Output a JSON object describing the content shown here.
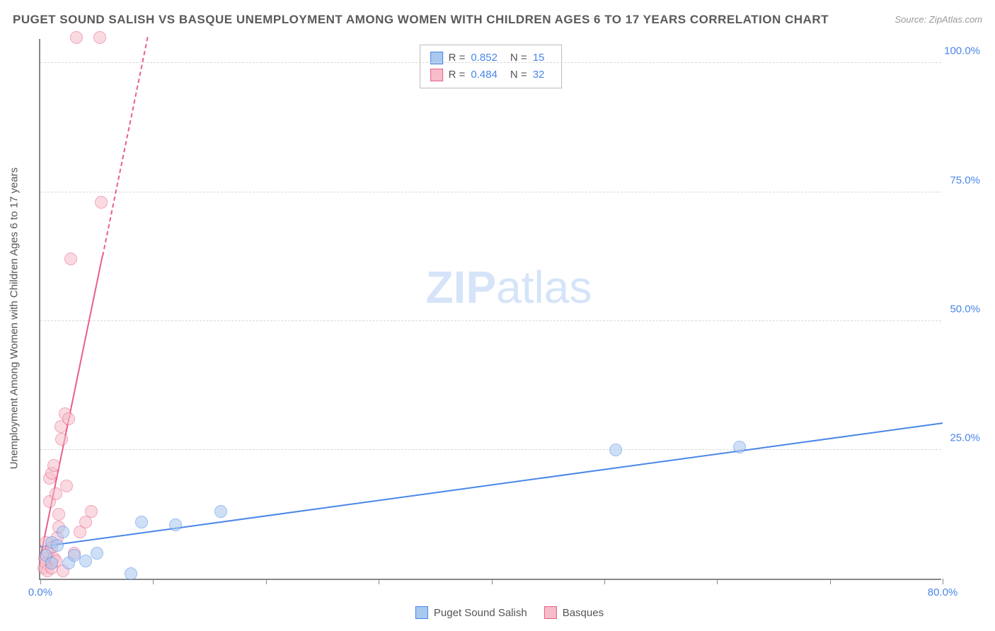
{
  "title": "PUGET SOUND SALISH VS BASQUE UNEMPLOYMENT AMONG WOMEN WITH CHILDREN AGES 6 TO 17 YEARS CORRELATION CHART",
  "source": "Source: ZipAtlas.com",
  "watermark_zip": "ZIP",
  "watermark_atlas": "atlas",
  "y_axis_label": "Unemployment Among Women with Children Ages 6 to 17 years",
  "chart": {
    "type": "scatter",
    "xlim": [
      0,
      80
    ],
    "ylim": [
      0,
      105
    ],
    "x_ticks": [
      0,
      10,
      20,
      30,
      40,
      50,
      60,
      70,
      80
    ],
    "x_tick_labels": {
      "0": "0.0%",
      "80": "80.0%"
    },
    "y_ticks": [
      25,
      50,
      75,
      100
    ],
    "y_tick_labels": {
      "25": "25.0%",
      "50": "50.0%",
      "75": "75.0%",
      "100": "100.0%"
    },
    "grid_color": "#d8d8d8",
    "axis_color": "#888888",
    "tick_label_color": "#4a86e8",
    "background_color": "#ffffff",
    "point_radius": 9,
    "point_opacity": 0.55,
    "series": {
      "puget": {
        "label": "Puget Sound Salish",
        "color_fill": "#a8c8f0",
        "color_stroke": "#4a86e8",
        "R": "0.852",
        "N": "15",
        "points": [
          [
            0.5,
            4.5
          ],
          [
            1.0,
            3.0
          ],
          [
            1.0,
            7.0
          ],
          [
            1.5,
            6.5
          ],
          [
            2.0,
            9.0
          ],
          [
            2.5,
            3.0
          ],
          [
            3.0,
            4.5
          ],
          [
            4.0,
            3.5
          ],
          [
            5.0,
            5.0
          ],
          [
            8.0,
            1.0
          ],
          [
            9.0,
            11.0
          ],
          [
            12.0,
            10.5
          ],
          [
            16.0,
            13.0
          ],
          [
            51.0,
            25.0
          ],
          [
            62.0,
            25.5
          ]
        ],
        "trend": {
          "x1": 0,
          "y1": 6.0,
          "x2": 80,
          "y2": 30.0,
          "dashed_from_x": null
        }
      },
      "basques": {
        "label": "Basques",
        "color_fill": "#f6bcc9",
        "color_stroke": "#e85f87",
        "R": "0.484",
        "N": "32",
        "points": [
          [
            0.3,
            2.0
          ],
          [
            0.4,
            4.0
          ],
          [
            0.5,
            3.0
          ],
          [
            0.5,
            7.0
          ],
          [
            0.6,
            1.5
          ],
          [
            0.7,
            5.0
          ],
          [
            0.8,
            15.0
          ],
          [
            0.8,
            19.5
          ],
          [
            1.0,
            2.0
          ],
          [
            1.0,
            6.0
          ],
          [
            1.0,
            20.5
          ],
          [
            1.2,
            22.0
          ],
          [
            1.2,
            4.0
          ],
          [
            1.4,
            3.5
          ],
          [
            1.5,
            8.0
          ],
          [
            1.6,
            12.5
          ],
          [
            1.6,
            10.0
          ],
          [
            1.8,
            29.5
          ],
          [
            1.9,
            27.0
          ],
          [
            2.0,
            1.5
          ],
          [
            2.2,
            32.0
          ],
          [
            2.3,
            18.0
          ],
          [
            2.5,
            31.0
          ],
          [
            2.7,
            62.0
          ],
          [
            3.0,
            5.0
          ],
          [
            3.5,
            9.0
          ],
          [
            3.2,
            105.0
          ],
          [
            4.0,
            11.0
          ],
          [
            4.5,
            13.0
          ],
          [
            5.3,
            105.0
          ],
          [
            5.4,
            73.0
          ],
          [
            1.4,
            16.5
          ]
        ],
        "trend": {
          "x1": 0,
          "y1": 4.0,
          "x2": 9.5,
          "y2": 105.0,
          "dashed_from_x": 5.5
        }
      }
    }
  },
  "legend_stats": {
    "r_label": "R =",
    "n_label": "N ="
  }
}
